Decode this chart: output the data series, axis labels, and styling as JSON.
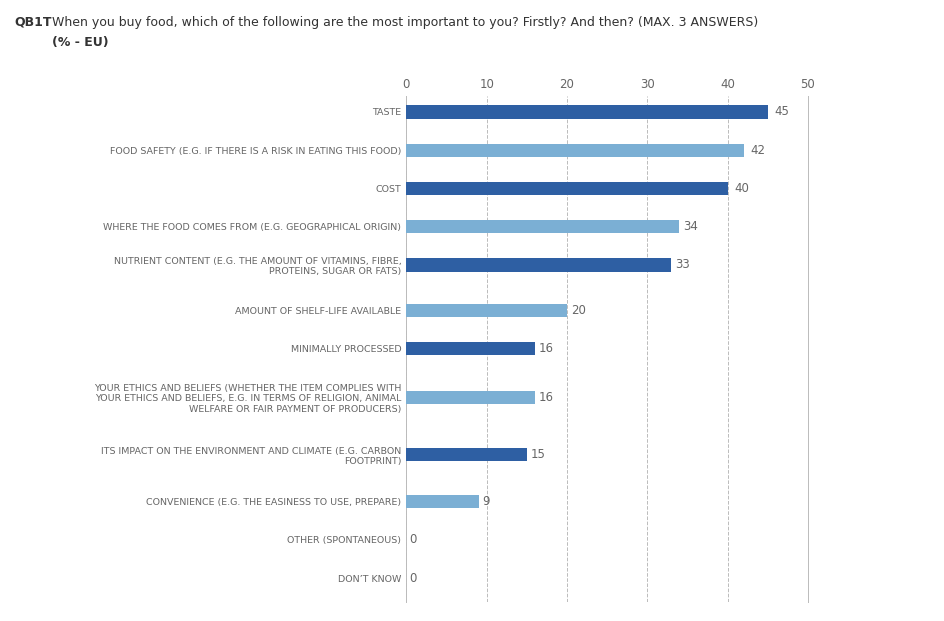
{
  "title_bold": "QB1T",
  "title_text": "  When you buy food, which of the following are the most important to you? Firstly? And then? (MAX. 3 ANSWERS)",
  "subtitle": "      (% - EU)",
  "categories": [
    "DON’T KNOW",
    "OTHER (SPONTANEOUS)",
    "CONVENIENCE (E.G. THE EASINESS TO USE, PREPARE)",
    "ITS IMPACT ON THE ENVIRONMENT AND CLIMATE (E.G. CARBON\nFOOTPRINT)",
    "YOUR ETHICS AND BELIEFS (WHETHER THE ITEM COMPLIES WITH\nYOUR ETHICS AND BELIEFS, E.G. IN TERMS OF RELIGION, ANIMAL\nWELFARE OR FAIR PAYMENT OF PRODUCERS)",
    "MINIMALLY PROCESSED",
    "AMOUNT OF SHELF-LIFE AVAILABLE",
    "NUTRIENT CONTENT (E.G. THE AMOUNT OF VITAMINS, FIBRE,\nPROTEINS, SUGAR OR FATS)",
    "WHERE THE FOOD COMES FROM (E.G. GEOGRAPHICAL ORIGIN)",
    "COST",
    "FOOD SAFETY (E.G. IF THERE IS A RISK IN EATING THIS FOOD)",
    "TASTE"
  ],
  "values": [
    0,
    0,
    9,
    15,
    16,
    16,
    20,
    33,
    34,
    40,
    42,
    45
  ],
  "colors": [
    "#7BAFD4",
    "#7BAFD4",
    "#7BAFD4",
    "#2E5FA3",
    "#7BAFD4",
    "#2E5FA3",
    "#7BAFD4",
    "#2E5FA3",
    "#7BAFD4",
    "#2E5FA3",
    "#7BAFD4",
    "#2E5FA3"
  ],
  "xlim": [
    0,
    50
  ],
  "xticks": [
    0,
    10,
    20,
    30,
    40,
    50
  ],
  "label_color": "#666666",
  "value_label_color": "#666666",
  "bar_height": 0.38,
  "grid_color": "#BBBBBB",
  "background_color": "#FFFFFF",
  "outside_label_threshold": 38
}
